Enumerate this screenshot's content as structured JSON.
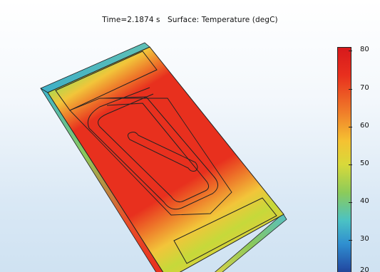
{
  "title": {
    "time": "Time=2.1874 s",
    "surface": "Surface: Temperature (degC)"
  },
  "colorbar": {
    "ticks": [
      "80",
      "70",
      "60",
      "50",
      "40",
      "30",
      "20"
    ],
    "min": 20,
    "max": 80,
    "colors": {
      "hot": "#e8301e",
      "warm": "#f5a623",
      "mid": "#c6d93a",
      "cool": "#4fc0c8",
      "cold": "#2b5fa8"
    }
  }
}
